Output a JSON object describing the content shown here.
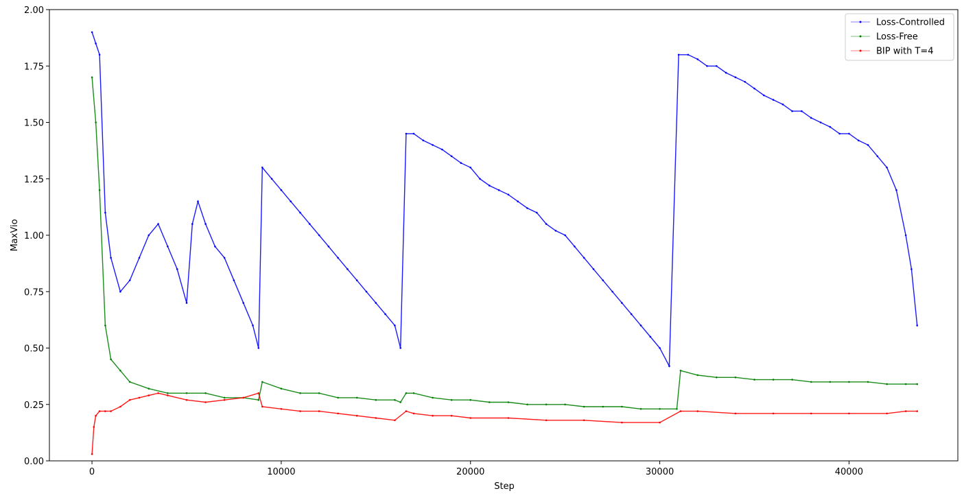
{
  "chart_data": {
    "type": "line",
    "title": "",
    "xlabel": "Step",
    "ylabel": "MaxVio",
    "xlim": [
      -2250,
      45750
    ],
    "ylim": [
      0,
      2.0
    ],
    "xticks": [
      0,
      10000,
      20000,
      30000,
      40000
    ],
    "xtick_labels": [
      "0",
      "10000",
      "20000",
      "30000",
      "40000"
    ],
    "yticks": [
      0.0,
      0.25,
      0.5,
      0.75,
      1.0,
      1.25,
      1.5,
      1.75,
      2.0
    ],
    "ytick_labels": [
      "0.00",
      "0.25",
      "0.50",
      "0.75",
      "1.00",
      "1.25",
      "1.50",
      "1.75",
      "2.00"
    ],
    "grid": false,
    "legend_position": "top-right",
    "series": [
      {
        "name": "Loss-Controlled",
        "color": "#0000ff",
        "x": [
          0,
          200,
          400,
          700,
          1000,
          1500,
          2000,
          2500,
          3000,
          3500,
          4000,
          4500,
          5000,
          5300,
          5600,
          6000,
          6500,
          7000,
          7500,
          8000,
          8500,
          8800,
          9000,
          9500,
          10000,
          10500,
          11000,
          11500,
          12000,
          12500,
          13000,
          13500,
          14000,
          14500,
          15000,
          15500,
          16000,
          16300,
          16600,
          17000,
          17500,
          18000,
          18500,
          19000,
          19500,
          20000,
          20500,
          21000,
          21500,
          22000,
          22500,
          23000,
          23500,
          24000,
          24500,
          25000,
          25500,
          26000,
          26500,
          27000,
          27500,
          28000,
          28500,
          29000,
          29500,
          30000,
          30500,
          31000,
          31500,
          32000,
          32500,
          33000,
          33500,
          34000,
          34500,
          35000,
          35500,
          36000,
          36500,
          37000,
          37500,
          38000,
          38500,
          39000,
          39500,
          40000,
          40500,
          41000,
          41500,
          42000,
          42500,
          43000,
          43300,
          43600
        ],
        "y": [
          1.9,
          1.85,
          1.8,
          1.1,
          0.9,
          0.75,
          0.8,
          0.9,
          1.0,
          1.05,
          0.95,
          0.85,
          0.7,
          1.05,
          1.15,
          1.05,
          0.95,
          0.9,
          0.8,
          0.7,
          0.6,
          0.5,
          1.3,
          1.25,
          1.2,
          1.15,
          1.1,
          1.05,
          1.0,
          0.95,
          0.9,
          0.85,
          0.8,
          0.75,
          0.7,
          0.65,
          0.6,
          0.5,
          1.45,
          1.45,
          1.42,
          1.4,
          1.38,
          1.35,
          1.32,
          1.3,
          1.25,
          1.22,
          1.2,
          1.18,
          1.15,
          1.12,
          1.1,
          1.05,
          1.02,
          1.0,
          0.95,
          0.9,
          0.85,
          0.8,
          0.75,
          0.7,
          0.65,
          0.6,
          0.55,
          0.5,
          0.42,
          1.8,
          1.8,
          1.78,
          1.75,
          1.75,
          1.72,
          1.7,
          1.68,
          1.65,
          1.62,
          1.6,
          1.58,
          1.55,
          1.55,
          1.52,
          1.5,
          1.48,
          1.45,
          1.45,
          1.42,
          1.4,
          1.35,
          1.3,
          1.2,
          1.0,
          0.85,
          0.6
        ]
      },
      {
        "name": "Loss-Free",
        "color": "#008000",
        "x": [
          0,
          200,
          400,
          700,
          1000,
          1500,
          2000,
          3000,
          4000,
          5000,
          6000,
          7000,
          8000,
          8800,
          9000,
          10000,
          11000,
          12000,
          13000,
          14000,
          15000,
          16000,
          16300,
          16600,
          17000,
          18000,
          19000,
          20000,
          21000,
          22000,
          23000,
          24000,
          25000,
          26000,
          27000,
          28000,
          29000,
          30000,
          30900,
          31100,
          32000,
          33000,
          34000,
          35000,
          36000,
          37000,
          38000,
          39000,
          40000,
          41000,
          42000,
          43000,
          43600
        ],
        "y": [
          1.7,
          1.5,
          1.2,
          0.6,
          0.45,
          0.4,
          0.35,
          0.32,
          0.3,
          0.3,
          0.3,
          0.28,
          0.28,
          0.27,
          0.35,
          0.32,
          0.3,
          0.3,
          0.28,
          0.28,
          0.27,
          0.27,
          0.26,
          0.3,
          0.3,
          0.28,
          0.27,
          0.27,
          0.26,
          0.26,
          0.25,
          0.25,
          0.25,
          0.24,
          0.24,
          0.24,
          0.23,
          0.23,
          0.23,
          0.4,
          0.38,
          0.37,
          0.37,
          0.36,
          0.36,
          0.36,
          0.35,
          0.35,
          0.35,
          0.35,
          0.34,
          0.34,
          0.34
        ]
      },
      {
        "name": "BIP with T=4",
        "color": "#ff0000",
        "x": [
          0,
          100,
          200,
          400,
          700,
          1000,
          1500,
          2000,
          2500,
          3000,
          3500,
          4000,
          5000,
          6000,
          7000,
          8000,
          8800,
          9000,
          10000,
          11000,
          12000,
          13000,
          14000,
          15000,
          16000,
          16600,
          17000,
          18000,
          19000,
          20000,
          22000,
          24000,
          26000,
          28000,
          30000,
          31100,
          32000,
          34000,
          36000,
          38000,
          40000,
          42000,
          43000,
          43600
        ],
        "y": [
          0.03,
          0.15,
          0.2,
          0.22,
          0.22,
          0.22,
          0.24,
          0.27,
          0.28,
          0.29,
          0.3,
          0.29,
          0.27,
          0.26,
          0.27,
          0.28,
          0.3,
          0.24,
          0.23,
          0.22,
          0.22,
          0.21,
          0.2,
          0.19,
          0.18,
          0.22,
          0.21,
          0.2,
          0.2,
          0.19,
          0.19,
          0.18,
          0.18,
          0.17,
          0.17,
          0.22,
          0.22,
          0.21,
          0.21,
          0.21,
          0.21,
          0.21,
          0.22,
          0.22
        ]
      }
    ]
  }
}
